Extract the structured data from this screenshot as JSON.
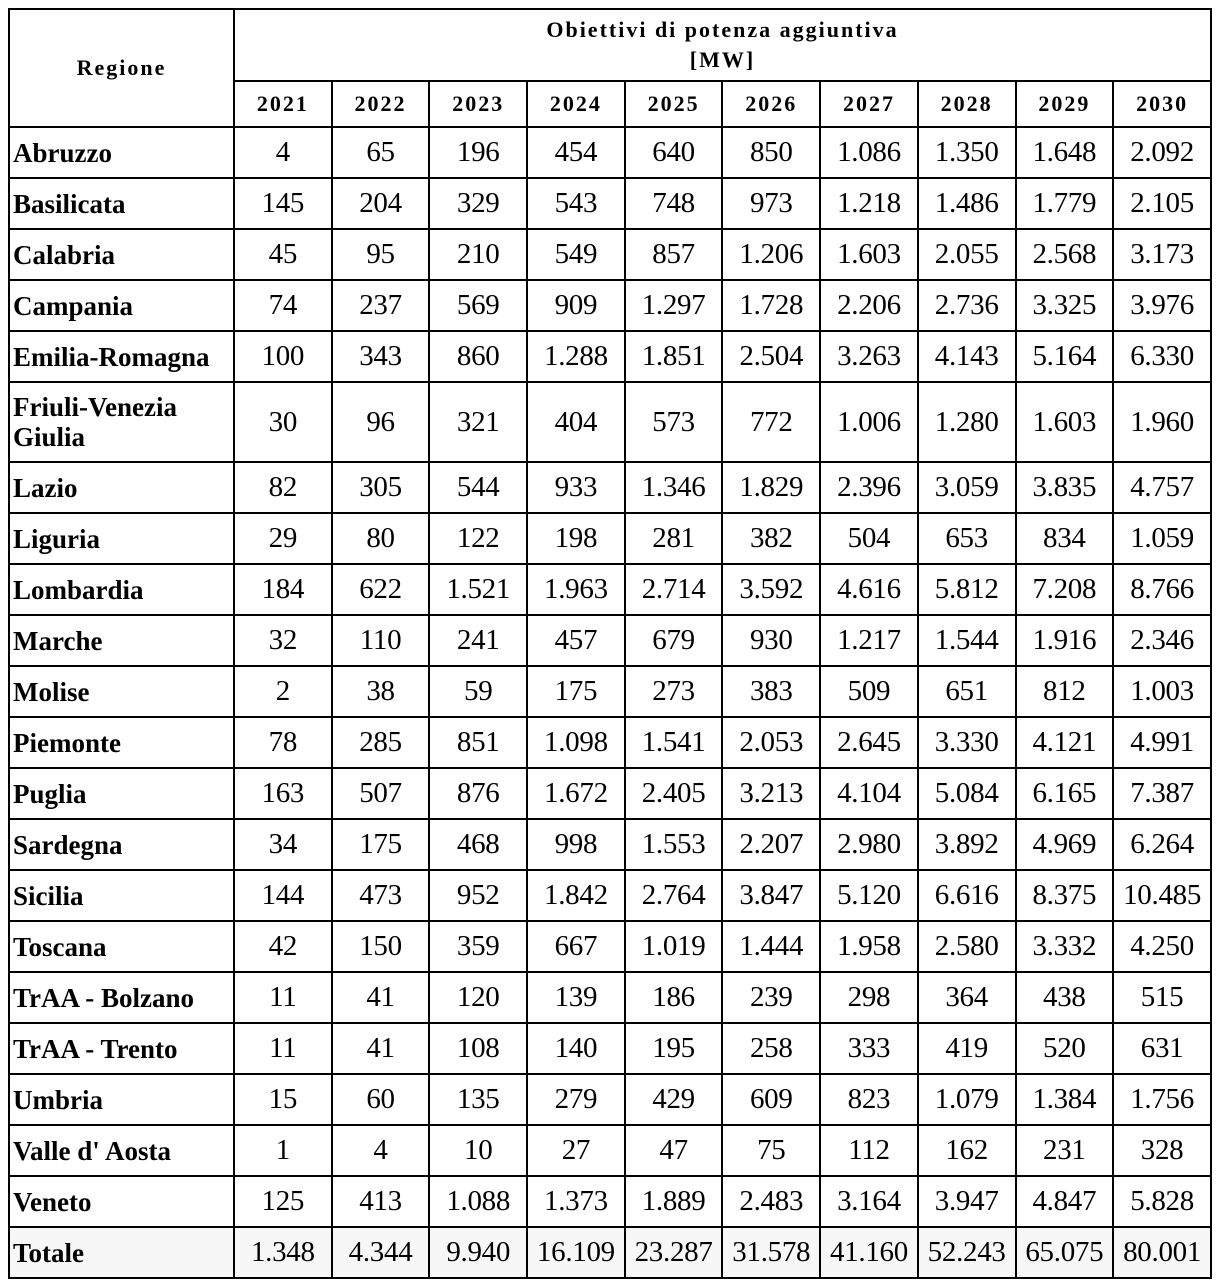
{
  "table": {
    "header": {
      "region": "Regione",
      "group": "Obiettivi di potenza aggiuntiva",
      "unit": "[MW]",
      "years": [
        "2021",
        "2022",
        "2023",
        "2024",
        "2025",
        "2026",
        "2027",
        "2028",
        "2029",
        "2030"
      ]
    },
    "rows": [
      {
        "name": "Abruzzo",
        "values": [
          "4",
          "65",
          "196",
          "454",
          "640",
          "850",
          "1.086",
          "1.350",
          "1.648",
          "2.092"
        ]
      },
      {
        "name": "Basilicata",
        "values": [
          "145",
          "204",
          "329",
          "543",
          "748",
          "973",
          "1.218",
          "1.486",
          "1.779",
          "2.105"
        ]
      },
      {
        "name": "Calabria",
        "values": [
          "45",
          "95",
          "210",
          "549",
          "857",
          "1.206",
          "1.603",
          "2.055",
          "2.568",
          "3.173"
        ]
      },
      {
        "name": "Campania",
        "values": [
          "74",
          "237",
          "569",
          "909",
          "1.297",
          "1.728",
          "2.206",
          "2.736",
          "3.325",
          "3.976"
        ]
      },
      {
        "name": "Emilia-Romagna",
        "values": [
          "100",
          "343",
          "860",
          "1.288",
          "1.851",
          "2.504",
          "3.263",
          "4.143",
          "5.164",
          "6.330"
        ]
      },
      {
        "name": "Friuli-Venezia Giulia",
        "values": [
          "30",
          "96",
          "321",
          "404",
          "573",
          "772",
          "1.006",
          "1.280",
          "1.603",
          "1.960"
        ]
      },
      {
        "name": "Lazio",
        "values": [
          "82",
          "305",
          "544",
          "933",
          "1.346",
          "1.829",
          "2.396",
          "3.059",
          "3.835",
          "4.757"
        ]
      },
      {
        "name": "Liguria",
        "values": [
          "29",
          "80",
          "122",
          "198",
          "281",
          "382",
          "504",
          "653",
          "834",
          "1.059"
        ]
      },
      {
        "name": "Lombardia",
        "values": [
          "184",
          "622",
          "1.521",
          "1.963",
          "2.714",
          "3.592",
          "4.616",
          "5.812",
          "7.208",
          "8.766"
        ]
      },
      {
        "name": "Marche",
        "values": [
          "32",
          "110",
          "241",
          "457",
          "679",
          "930",
          "1.217",
          "1.544",
          "1.916",
          "2.346"
        ]
      },
      {
        "name": "Molise",
        "values": [
          "2",
          "38",
          "59",
          "175",
          "273",
          "383",
          "509",
          "651",
          "812",
          "1.003"
        ]
      },
      {
        "name": "Piemonte",
        "values": [
          "78",
          "285",
          "851",
          "1.098",
          "1.541",
          "2.053",
          "2.645",
          "3.330",
          "4.121",
          "4.991"
        ]
      },
      {
        "name": "Puglia",
        "values": [
          "163",
          "507",
          "876",
          "1.672",
          "2.405",
          "3.213",
          "4.104",
          "5.084",
          "6.165",
          "7.387"
        ]
      },
      {
        "name": "Sardegna",
        "values": [
          "34",
          "175",
          "468",
          "998",
          "1.553",
          "2.207",
          "2.980",
          "3.892",
          "4.969",
          "6.264"
        ]
      },
      {
        "name": "Sicilia",
        "values": [
          "144",
          "473",
          "952",
          "1.842",
          "2.764",
          "3.847",
          "5.120",
          "6.616",
          "8.375",
          "10.485"
        ]
      },
      {
        "name": "Toscana",
        "values": [
          "42",
          "150",
          "359",
          "667",
          "1.019",
          "1.444",
          "1.958",
          "2.580",
          "3.332",
          "4.250"
        ]
      },
      {
        "name": "TrAA - Bolzano",
        "values": [
          "11",
          "41",
          "120",
          "139",
          "186",
          "239",
          "298",
          "364",
          "438",
          "515"
        ]
      },
      {
        "name": "TrAA - Trento",
        "values": [
          "11",
          "41",
          "108",
          "140",
          "195",
          "258",
          "333",
          "419",
          "520",
          "631"
        ]
      },
      {
        "name": "Umbria",
        "values": [
          "15",
          "60",
          "135",
          "279",
          "429",
          "609",
          "823",
          "1.079",
          "1.384",
          "1.756"
        ]
      },
      {
        "name": "Valle d' Aosta",
        "values": [
          "1",
          "4",
          "10",
          "27",
          "47",
          "75",
          "112",
          "162",
          "231",
          "328"
        ]
      },
      {
        "name": "Veneto",
        "values": [
          "125",
          "413",
          "1.088",
          "1.373",
          "1.889",
          "2.483",
          "3.164",
          "3.947",
          "4.847",
          "5.828"
        ]
      },
      {
        "name": "Totale",
        "values": [
          "1.348",
          "4.344",
          "9.940",
          "16.109",
          "23.287",
          "31.578",
          "41.160",
          "52.243",
          "65.075",
          "80.001"
        ]
      }
    ]
  }
}
